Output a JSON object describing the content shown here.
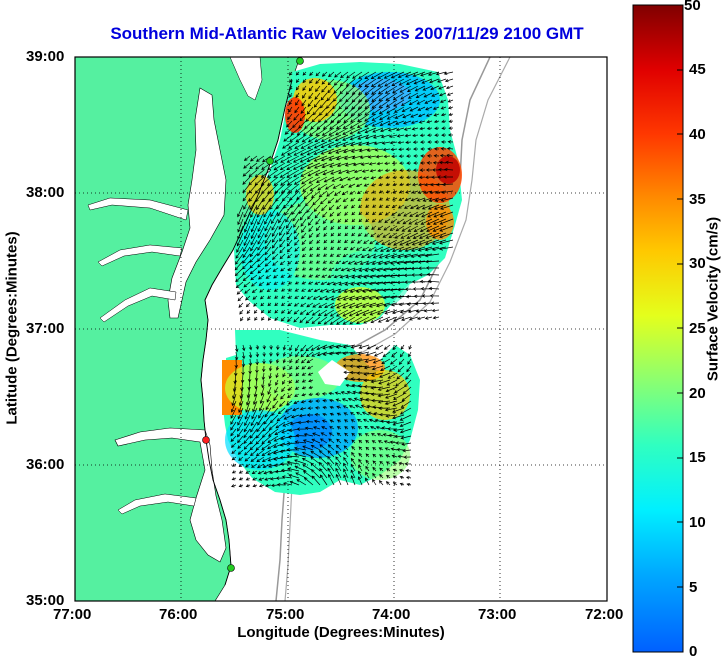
{
  "title": "Southern Mid-Atlantic Raw Velocities 2007/11/29 2100 GMT",
  "xlabel": "Longitude (Degrees:Minutes)",
  "ylabel": "Latitude (Degrees:Minutes)",
  "colorbar": {
    "label": "Surface Velocity (cm/s)",
    "ticks": [
      "0",
      "5",
      "10",
      "15",
      "20",
      "25",
      "30",
      "35",
      "40",
      "45",
      "50"
    ],
    "range": [
      0,
      50
    ],
    "colormap": "jet"
  },
  "chart_data": {
    "type": "heatmap",
    "x_ticks": [
      "77:00",
      "76:00",
      "75:00",
      "74:00",
      "73:00",
      "72:00"
    ],
    "y_ticks": [
      "39:00",
      "38:00",
      "37:00",
      "36:00",
      "35:00"
    ],
    "xlim": [
      "77:00 W",
      "72:00 W"
    ],
    "ylim": [
      "35:00 N",
      "39:00 N"
    ],
    "grid": true,
    "land_color": "#55f0a0"
  }
}
